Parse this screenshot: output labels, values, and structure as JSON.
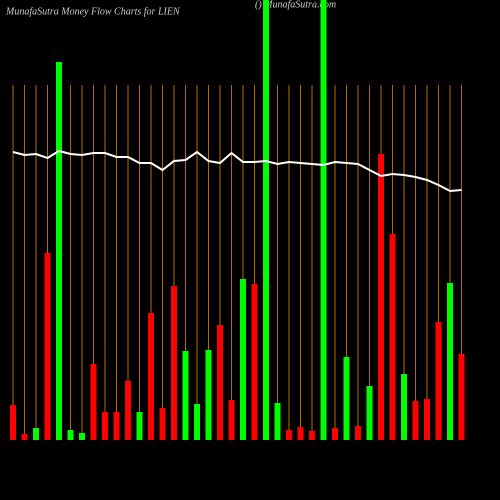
{
  "chart_data": {
    "type": "bar",
    "title": "MunafaSutra  Money Flow  Charts for LIEN",
    "subtitle": "() MunafaSutra.com",
    "categories": [
      null,
      null,
      null,
      null,
      null,
      null,
      null,
      null,
      null,
      null,
      null,
      null,
      null,
      null,
      null,
      null,
      null,
      null,
      null,
      null,
      null,
      null,
      null,
      null,
      null,
      null,
      null,
      null,
      null,
      null,
      null,
      null,
      null,
      null,
      null,
      null,
      null,
      null,
      null,
      null
    ],
    "values": [
      35,
      6,
      12,
      187,
      378,
      10,
      7,
      76,
      28,
      28,
      59,
      28,
      127,
      32,
      154,
      89,
      36,
      90,
      115,
      40,
      161,
      156,
      440,
      37,
      10,
      13,
      9,
      440,
      12,
      83,
      14,
      54,
      286,
      206,
      66,
      39,
      41,
      118,
      157,
      86
    ],
    "colors": [
      "#ff0000",
      "#ff0000",
      "#00ff00",
      "#ff0000",
      "#00ff00",
      "#00ff00",
      "#00ff00",
      "#ff0000",
      "#ff0000",
      "#ff0000",
      "#ff0000",
      "#00ff00",
      "#ff0000",
      "#ff0000",
      "#ff0000",
      "#00ff00",
      "#00ff00",
      "#00ff00",
      "#ff0000",
      "#ff0000",
      "#00ff00",
      "#ff0000",
      "#00ff00",
      "#00ff00",
      "#ff0000",
      "#ff0000",
      "#ff0000",
      "#00ff00",
      "#ff0000",
      "#00ff00",
      "#ff0000",
      "#00ff00",
      "#ff0000",
      "#ff0000",
      "#00ff00",
      "#ff0000",
      "#ff0000",
      "#ff0000",
      "#00ff00",
      "#ff0000"
    ],
    "line": {
      "color": "#ffffff",
      "values": [
        288,
        285,
        286,
        282,
        289,
        286,
        285,
        287,
        287,
        283,
        283,
        277,
        277,
        270,
        279,
        280,
        288,
        279,
        277,
        287,
        278,
        278,
        279,
        276,
        278,
        277,
        276,
        275,
        278,
        277,
        276,
        270,
        264,
        266,
        265,
        263,
        260,
        255,
        249,
        250
      ]
    },
    "ylim": [
      0,
      440
    ],
    "grid": true,
    "grid_color": "#b36b00"
  }
}
